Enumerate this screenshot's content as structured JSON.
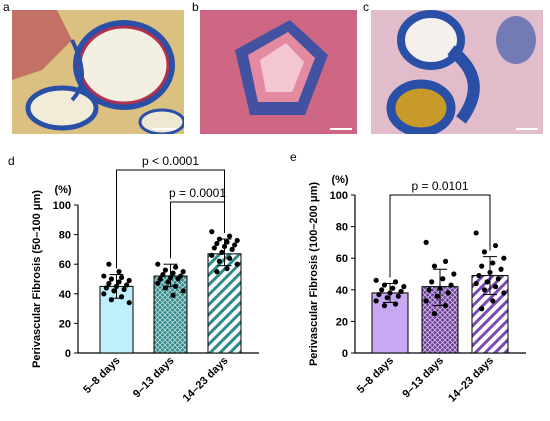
{
  "panels": {
    "a": "a",
    "b": "b",
    "c": "c",
    "d": "d",
    "e": "e"
  },
  "colors": {
    "tissue_blue": "#2a4fa6",
    "tissue_red": "#b0304f",
    "tissue_yellow": "#c89a2a",
    "tissue_pink": "#d77a94",
    "bar_5_8_d": "#bfeefc",
    "bar_9_13_d": "#2f8a8a",
    "bar_14_23_d": "#2f8a8a",
    "bar_5_8_e": "#c8a8f2",
    "bar_9_13_e": "#6a3c9a",
    "bar_14_23_e": "#7a4ab0"
  },
  "chart_data": [
    {
      "panel": "d",
      "type": "bar",
      "categories": [
        "5–8 days",
        "9–13 days",
        "14–23 days"
      ],
      "values": [
        45,
        52,
        67
      ],
      "errors": [
        [
          37,
          53
        ],
        [
          45,
          60
        ],
        [
          59,
          77
        ]
      ],
      "points": [
        [
          52,
          51,
          50,
          49,
          48,
          47,
          46,
          45,
          44,
          43,
          42,
          40,
          38,
          36,
          34,
          55,
          60
        ],
        [
          60,
          58,
          56,
          55,
          54,
          53,
          52,
          51,
          50,
          50,
          48,
          47,
          45,
          44,
          42,
          39
        ],
        [
          82,
          79,
          77,
          76,
          75,
          74,
          73,
          72,
          71,
          70,
          68,
          66,
          64,
          62,
          60,
          57,
          55
        ]
      ],
      "ylabel": "Perivascular Fibrosis (50–100 μm)",
      "unit": "(%)",
      "ylim": [
        0,
        100
      ],
      "yticks": [
        "0",
        "20",
        "40",
        "60",
        "80",
        "100"
      ],
      "brackets": [
        {
          "from": 0,
          "to": 2,
          "label": "p < 0.0001"
        },
        {
          "from": 1,
          "to": 2,
          "label": "p = 0.0001"
        }
      ]
    },
    {
      "panel": "e",
      "type": "bar",
      "categories": [
        "5–8 days",
        "9–13 days",
        "14–23 days"
      ],
      "values": [
        38,
        42,
        49
      ],
      "errors": [
        [
          32,
          44
        ],
        [
          30,
          53
        ],
        [
          37,
          61
        ]
      ],
      "points": [
        [
          46,
          45,
          43,
          42,
          41,
          40,
          39,
          38,
          37,
          36,
          35,
          33,
          31,
          30
        ],
        [
          70,
          58,
          55,
          50,
          47,
          45,
          43,
          41,
          40,
          38,
          36,
          33,
          30,
          25
        ],
        [
          76,
          68,
          64,
          60,
          57,
          55,
          53,
          51,
          49,
          47,
          45,
          44,
          42,
          40,
          38,
          33,
          28
        ]
      ],
      "ylabel": "Perivascular Fibrosis (100–200 μm)",
      "unit": "(%)",
      "ylim": [
        0,
        100
      ],
      "yticks": [
        "0",
        "20",
        "40",
        "60",
        "80",
        "100"
      ],
      "brackets": [
        {
          "from": 0,
          "to": 2,
          "label": "p = 0.0101"
        }
      ]
    }
  ]
}
